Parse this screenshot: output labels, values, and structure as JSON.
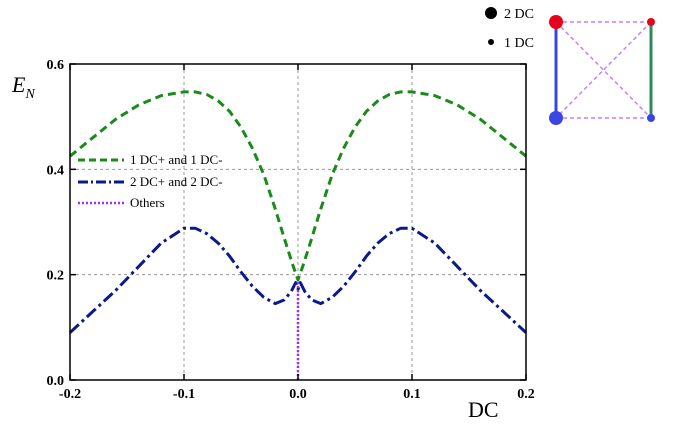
{
  "chart_data": {
    "type": "line",
    "ylabel": "E",
    "ylabel_sub": "N",
    "xlabel": "DC",
    "xlim": [
      -0.2,
      0.2
    ],
    "ylim": [
      0.0,
      0.6
    ],
    "grid": true,
    "grid_style": "dashed",
    "legend_position": "left",
    "x_ticks": [
      "-0.2",
      "-0.1",
      "0.0",
      "0.1",
      "0.2"
    ],
    "y_ticks": [
      "0.0",
      "0.2",
      "0.4",
      "0.6"
    ],
    "x_tick_values": [
      -0.2,
      -0.1,
      0.0,
      0.1,
      0.2
    ],
    "y_tick_values": [
      0.0,
      0.2,
      0.4,
      0.6
    ],
    "series": [
      {
        "name": "1 DC+ and 1 DC-",
        "color": "#1a8a1a",
        "style": "dashed",
        "x": [
          -0.2,
          -0.18,
          -0.16,
          -0.14,
          -0.12,
          -0.1,
          -0.09,
          -0.08,
          -0.07,
          -0.06,
          -0.05,
          -0.04,
          -0.03,
          -0.02,
          -0.01,
          -0.004,
          0.0,
          0.004,
          0.01,
          0.02,
          0.03,
          0.04,
          0.05,
          0.06,
          0.07,
          0.08,
          0.09,
          0.1,
          0.12,
          0.14,
          0.16,
          0.18,
          0.2
        ],
        "y": [
          0.425,
          0.46,
          0.495,
          0.522,
          0.54,
          0.547,
          0.547,
          0.542,
          0.53,
          0.51,
          0.48,
          0.44,
          0.39,
          0.325,
          0.255,
          0.215,
          0.19,
          0.215,
          0.255,
          0.325,
          0.39,
          0.44,
          0.48,
          0.51,
          0.53,
          0.542,
          0.547,
          0.547,
          0.54,
          0.522,
          0.495,
          0.46,
          0.425
        ]
      },
      {
        "name": "2 DC+ and 2 DC-",
        "color": "#0a1a8a",
        "style": "dashdot",
        "x": [
          -0.2,
          -0.18,
          -0.16,
          -0.14,
          -0.12,
          -0.1,
          -0.09,
          -0.08,
          -0.07,
          -0.06,
          -0.05,
          -0.04,
          -0.03,
          -0.02,
          -0.012,
          -0.006,
          -0.002,
          0.0,
          0.002,
          0.006,
          0.012,
          0.02,
          0.03,
          0.04,
          0.05,
          0.06,
          0.07,
          0.08,
          0.09,
          0.1,
          0.12,
          0.14,
          0.16,
          0.18,
          0.2
        ],
        "y": [
          0.09,
          0.13,
          0.17,
          0.215,
          0.26,
          0.288,
          0.288,
          0.278,
          0.26,
          0.235,
          0.205,
          0.178,
          0.157,
          0.145,
          0.152,
          0.168,
          0.185,
          0.172,
          0.185,
          0.168,
          0.152,
          0.145,
          0.157,
          0.178,
          0.205,
          0.235,
          0.26,
          0.278,
          0.288,
          0.288,
          0.26,
          0.215,
          0.17,
          0.13,
          0.09
        ]
      },
      {
        "name": "Others",
        "color": "#9b30ff",
        "style": "dotted",
        "x": [
          0.0,
          0.0
        ],
        "y": [
          0.0,
          0.19
        ]
      }
    ]
  },
  "inset": {
    "legend_large_label": "2 DC",
    "legend_small_label": "1 DC",
    "node_colors": {
      "top_left": "#e8001c",
      "top_right": "#e8001c",
      "bottom_left": "#3b46e0",
      "bottom_right": "#3b46e0"
    },
    "edge_colors": {
      "left": "#3b46e0",
      "right": "#2e8b57",
      "dashed": "#c77dff"
    }
  }
}
